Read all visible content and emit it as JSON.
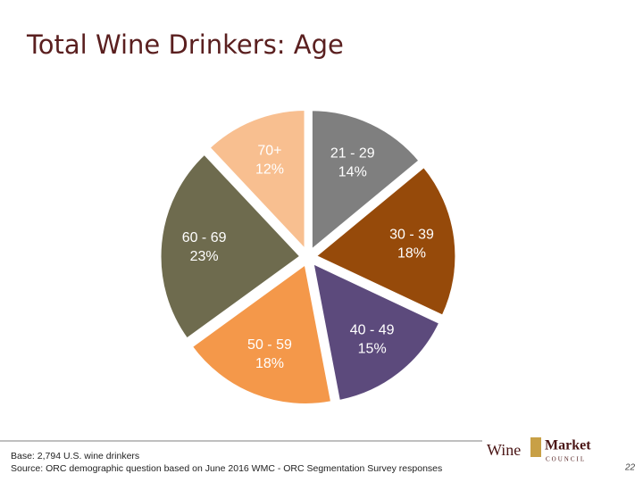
{
  "chart_data": {
    "type": "pie",
    "title": "Total Wine Drinkers: Age",
    "categories": [
      "21 - 29",
      "30 - 39",
      "40 - 49",
      "50 - 59",
      "60 - 69",
      "70+"
    ],
    "values": [
      14,
      18,
      15,
      18,
      23,
      12
    ],
    "value_labels": [
      "14%",
      "18%",
      "15%",
      "18%",
      "23%",
      "12%"
    ],
    "colors": [
      "#7f7f7f",
      "#964a0a",
      "#5c4a7c",
      "#f4984a",
      "#6e6b4e",
      "#f8bf90"
    ]
  },
  "footer": {
    "base": "Base: 2,794 U.S. wine drinkers",
    "source": "Source: ORC demographic question based on June 2016 WMC - ORC Segmentation Survey responses",
    "logo_wine": "Wine",
    "logo_market": "Market",
    "logo_council": "COUNCIL",
    "page_number": "22"
  }
}
